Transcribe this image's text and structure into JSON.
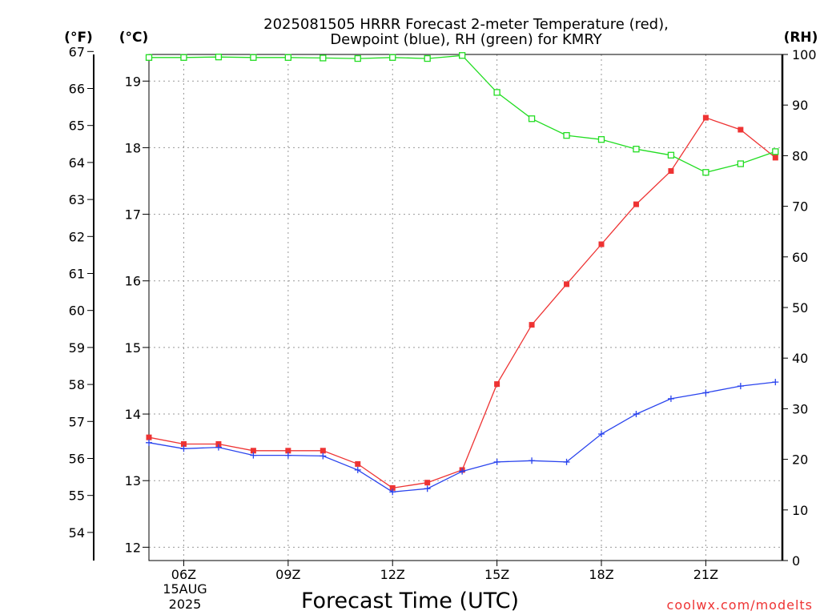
{
  "colors": {
    "temperature": "#ee3333",
    "dewpoint": "#2a44ee",
    "rh": "#22dd22",
    "grid": "#999999",
    "credit": "#ee3333"
  },
  "chart_data": {
    "type": "line",
    "title": [
      "2025081505 HRRR Forecast 2-meter Temperature (red),",
      "Dewpoint (blue), RH (green) for KMRY"
    ],
    "xlabel": "Forecast Time (UTC)",
    "date_label": [
      "15AUG",
      "2025"
    ],
    "credit": "coolwx.com/modelts",
    "units": {
      "fahrenheit": "(°F)",
      "celsius": "(°C)",
      "rh": "(RH)"
    },
    "x_hours": [
      5,
      6,
      7,
      8,
      9,
      10,
      11,
      12,
      13,
      14,
      15,
      16,
      17,
      18,
      19,
      20,
      21,
      22,
      23
    ],
    "x_range": [
      5,
      23.2
    ],
    "x_ticks": [
      {
        "hour": 6,
        "label": "06Z"
      },
      {
        "hour": 9,
        "label": "09Z"
      },
      {
        "hour": 12,
        "label": "12Z"
      },
      {
        "hour": 15,
        "label": "15Z"
      },
      {
        "hour": 18,
        "label": "18Z"
      },
      {
        "hour": 21,
        "label": "21Z"
      }
    ],
    "celsius_axis": {
      "range": [
        11.8,
        19.4
      ],
      "ticks": [
        12,
        13,
        14,
        15,
        16,
        17,
        18,
        19
      ]
    },
    "fahrenheit_axis": {
      "range": [
        53.24,
        66.92
      ],
      "ticks": [
        54,
        55,
        56,
        57,
        58,
        59,
        60,
        61,
        62,
        63,
        64,
        65,
        66,
        67
      ]
    },
    "rh_axis": {
      "range": [
        0,
        100
      ],
      "ticks": [
        0,
        10,
        20,
        30,
        40,
        50,
        60,
        70,
        80,
        90,
        100
      ]
    },
    "grid": true,
    "series": [
      {
        "name": "Temperature",
        "axis": "celsius",
        "marker": "filled-square",
        "values": [
          13.65,
          13.55,
          13.55,
          13.45,
          13.45,
          13.45,
          13.25,
          12.89,
          12.97,
          13.16,
          14.45,
          15.34,
          15.95,
          16.55,
          17.15,
          17.65,
          18.45,
          18.27,
          17.85
        ]
      },
      {
        "name": "Dewpoint",
        "axis": "celsius",
        "marker": "plus",
        "values": [
          13.57,
          13.48,
          13.5,
          13.38,
          13.38,
          13.37,
          13.16,
          12.83,
          12.88,
          13.14,
          13.28,
          13.3,
          13.28,
          13.7,
          14.0,
          14.23,
          14.32,
          14.42,
          14.48
        ]
      },
      {
        "name": "RH",
        "axis": "rh",
        "marker": "open-square",
        "values": [
          99.4,
          99.4,
          99.5,
          99.4,
          99.4,
          99.3,
          99.2,
          99.4,
          99.2,
          99.8,
          92.5,
          87.3,
          84.0,
          83.2,
          81.3,
          80.1,
          76.7,
          78.4,
          80.8
        ]
      }
    ]
  }
}
